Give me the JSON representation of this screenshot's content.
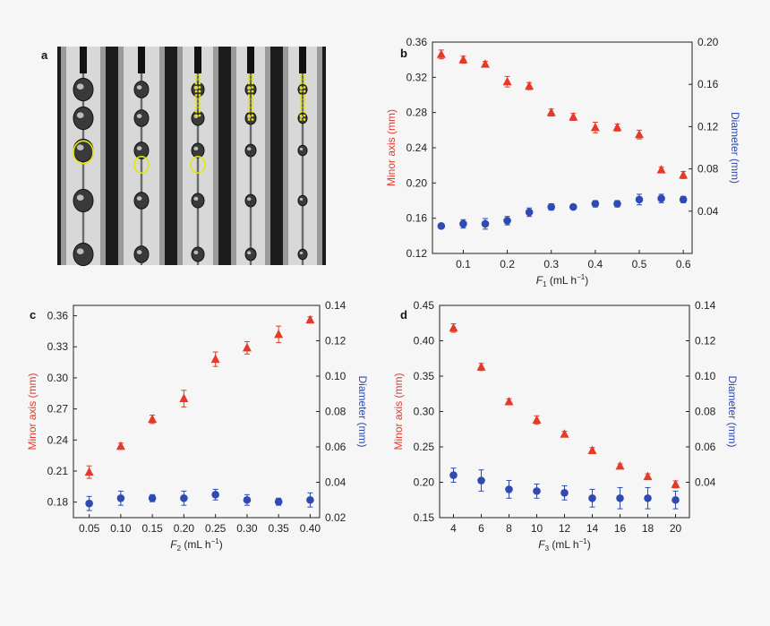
{
  "panel_a": {
    "label": "a",
    "frames": [
      {
        "guide": "circle-large"
      },
      {
        "guide": "circle-small"
      },
      {
        "guide": "circle-small-dots"
      },
      {
        "guide": "dots"
      },
      {
        "guide": "dots"
      }
    ]
  },
  "colors": {
    "minor_axis": "#e53a2a",
    "diameter": "#2f4ab2",
    "highlight": "#e6e600"
  },
  "chart_data": [
    {
      "panel": "b",
      "type": "scatter",
      "xlabel": "F",
      "xlabel_sub": "1",
      "xlabel_unit": " (mL h",
      "xlabel_sup": "−1",
      "xlabel_close": ")",
      "ylabel_left": "Minor axis (mm)",
      "ylabel_right": "Diameter (mm)",
      "xlim": [
        0.03,
        0.62
      ],
      "ylim_left": [
        0.12,
        0.36
      ],
      "ylim_right": [
        0.0,
        0.2
      ],
      "xticks": [
        0.1,
        0.2,
        0.3,
        0.4,
        0.5,
        0.6
      ],
      "xtick_labels": [
        "0.1",
        "0.2",
        "0.3",
        "0.4",
        "0.5",
        "0.6"
      ],
      "yticks_left": [
        0.12,
        0.16,
        0.2,
        0.24,
        0.28,
        0.32,
        0.36
      ],
      "ytick_labels_left": [
        "0.12",
        "0.16",
        "0.20",
        "0.24",
        "0.28",
        "0.32",
        "0.36"
      ],
      "yticks_right": [
        0.04,
        0.08,
        0.12,
        0.16,
        0.2
      ],
      "ytick_labels_right": [
        "0.04",
        "0.08",
        "0.12",
        "0.16",
        "0.20"
      ],
      "series": [
        {
          "axis": "left",
          "marker": "triangle",
          "x": [
            0.05,
            0.1,
            0.15,
            0.2,
            0.25,
            0.3,
            0.35,
            0.4,
            0.45,
            0.5,
            0.55,
            0.6
          ],
          "y": [
            0.346,
            0.34,
            0.335,
            0.315,
            0.31,
            0.28,
            0.275,
            0.263,
            0.263,
            0.255,
            0.215,
            0.209
          ],
          "err": [
            0.005,
            0.004,
            0.003,
            0.006,
            0.004,
            0.004,
            0.004,
            0.006,
            0.004,
            0.005,
            0.003,
            0.004
          ]
        },
        {
          "axis": "right",
          "marker": "circle",
          "x": [
            0.05,
            0.1,
            0.15,
            0.2,
            0.25,
            0.3,
            0.35,
            0.4,
            0.45,
            0.5,
            0.55,
            0.6
          ],
          "y": [
            0.026,
            0.028,
            0.028,
            0.031,
            0.039,
            0.044,
            0.044,
            0.047,
            0.047,
            0.051,
            0.052,
            0.051
          ],
          "err": [
            0.002,
            0.004,
            0.005,
            0.004,
            0.004,
            0.003,
            0.002,
            0.003,
            0.003,
            0.005,
            0.004,
            0.003
          ]
        }
      ]
    },
    {
      "panel": "c",
      "type": "scatter",
      "xlabel": "F",
      "xlabel_sub": "2",
      "xlabel_unit": " (mL h",
      "xlabel_sup": "−1",
      "xlabel_close": ")",
      "ylabel_left": "Minor axis (mm)",
      "ylabel_right": "Diameter (mm)",
      "xlim": [
        0.025,
        0.415
      ],
      "ylim_left": [
        0.165,
        0.37
      ],
      "ylim_right": [
        0.02,
        0.14
      ],
      "xticks": [
        0.05,
        0.1,
        0.15,
        0.2,
        0.25,
        0.3,
        0.35,
        0.4
      ],
      "xtick_labels": [
        "0.05",
        "0.10",
        "0.15",
        "0.20",
        "0.25",
        "0.30",
        "0.35",
        "0.40"
      ],
      "yticks_left": [
        0.18,
        0.21,
        0.24,
        0.27,
        0.3,
        0.33,
        0.36
      ],
      "ytick_labels_left": [
        "0.18",
        "0.21",
        "0.24",
        "0.27",
        "0.30",
        "0.33",
        "0.36"
      ],
      "yticks_right": [
        0.02,
        0.04,
        0.06,
        0.08,
        0.1,
        0.12,
        0.14
      ],
      "ytick_labels_right": [
        "0.02",
        "0.04",
        "0.06",
        "0.08",
        "0.10",
        "0.12",
        "0.14"
      ],
      "series": [
        {
          "axis": "left",
          "marker": "triangle",
          "x": [
            0.05,
            0.1,
            0.15,
            0.2,
            0.25,
            0.3,
            0.35,
            0.4
          ],
          "y": [
            0.209,
            0.234,
            0.26,
            0.28,
            0.318,
            0.329,
            0.342,
            0.356
          ],
          "err": [
            0.006,
            0.003,
            0.004,
            0.008,
            0.007,
            0.006,
            0.008,
            0.003
          ]
        },
        {
          "axis": "right",
          "marker": "circle",
          "x": [
            0.05,
            0.1,
            0.15,
            0.2,
            0.25,
            0.3,
            0.35,
            0.4
          ],
          "y": [
            0.028,
            0.031,
            0.031,
            0.031,
            0.033,
            0.03,
            0.029,
            0.03
          ],
          "err": [
            0.004,
            0.004,
            0.002,
            0.004,
            0.003,
            0.003,
            0.002,
            0.004
          ]
        }
      ]
    },
    {
      "panel": "d",
      "type": "scatter",
      "xlabel": "F",
      "xlabel_sub": "3",
      "xlabel_unit": " (mL h",
      "xlabel_sup": "−1",
      "xlabel_close": ")",
      "ylabel_left": "Minor axis (mm)",
      "ylabel_right": "Diameter (mm)",
      "xlim": [
        3,
        21
      ],
      "ylim_left": [
        0.15,
        0.45
      ],
      "ylim_right": [
        0.02,
        0.14
      ],
      "xticks": [
        4,
        6,
        8,
        10,
        12,
        14,
        16,
        18,
        20
      ],
      "xtick_labels": [
        "4",
        "6",
        "8",
        "10",
        "12",
        "14",
        "16",
        "18",
        "20"
      ],
      "yticks_left": [
        0.15,
        0.2,
        0.25,
        0.3,
        0.35,
        0.4,
        0.45
      ],
      "ytick_labels_left": [
        "0.15",
        "0.20",
        "0.25",
        "0.30",
        "0.35",
        "0.40",
        "0.45"
      ],
      "yticks_right": [
        0.04,
        0.06,
        0.08,
        0.1,
        0.12,
        0.14
      ],
      "ytick_labels_right": [
        "0.04",
        "0.06",
        "0.08",
        "0.10",
        "0.12",
        "0.14"
      ],
      "series": [
        {
          "axis": "left",
          "marker": "triangle",
          "x": [
            4,
            6,
            8,
            10,
            12,
            14,
            16,
            18,
            20
          ],
          "y": [
            0.418,
            0.363,
            0.314,
            0.288,
            0.268,
            0.245,
            0.223,
            0.208,
            0.197
          ],
          "err": [
            0.006,
            0.005,
            0.004,
            0.006,
            0.004,
            0.004,
            0.003,
            0.004,
            0.005
          ]
        },
        {
          "axis": "right",
          "marker": "circle",
          "x": [
            4,
            6,
            8,
            10,
            12,
            14,
            16,
            18,
            20
          ],
          "y": [
            0.044,
            0.041,
            0.036,
            0.035,
            0.034,
            0.031,
            0.031,
            0.031,
            0.03
          ],
          "err": [
            0.004,
            0.006,
            0.005,
            0.004,
            0.004,
            0.005,
            0.006,
            0.006,
            0.005
          ]
        }
      ]
    }
  ]
}
